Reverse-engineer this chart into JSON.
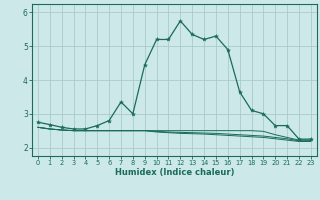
{
  "xlabel": "Humidex (Indice chaleur)",
  "xlim": [
    -0.5,
    23.5
  ],
  "ylim": [
    1.75,
    6.25
  ],
  "yticks": [
    2,
    3,
    4,
    5,
    6
  ],
  "xticks": [
    0,
    1,
    2,
    3,
    4,
    5,
    6,
    7,
    8,
    9,
    10,
    11,
    12,
    13,
    14,
    15,
    16,
    17,
    18,
    19,
    20,
    21,
    22,
    23
  ],
  "bg_color": "#cce8e8",
  "grid_color": "#aacaca",
  "line_color": "#1a6b5a",
  "main_curve_x": [
    0,
    1,
    2,
    3,
    4,
    5,
    6,
    7,
    8,
    9,
    10,
    11,
    12,
    13,
    14,
    15,
    16,
    17,
    18,
    19,
    20,
    21,
    22,
    23
  ],
  "main_curve_y": [
    2.75,
    2.68,
    2.6,
    2.55,
    2.55,
    2.65,
    2.8,
    3.35,
    3.0,
    4.45,
    5.2,
    5.2,
    5.75,
    5.35,
    5.2,
    5.3,
    4.9,
    3.65,
    3.1,
    3.0,
    2.65,
    2.65,
    2.25,
    2.25
  ],
  "flat_curve1_y": [
    2.6,
    2.55,
    2.52,
    2.5,
    2.5,
    2.5,
    2.5,
    2.5,
    2.5,
    2.5,
    2.5,
    2.5,
    2.5,
    2.5,
    2.5,
    2.5,
    2.5,
    2.5,
    2.5,
    2.48,
    2.38,
    2.3,
    2.22,
    2.22
  ],
  "flat_curve2_y": [
    2.6,
    2.55,
    2.52,
    2.5,
    2.5,
    2.5,
    2.5,
    2.5,
    2.5,
    2.5,
    2.48,
    2.46,
    2.45,
    2.44,
    2.43,
    2.42,
    2.4,
    2.38,
    2.36,
    2.34,
    2.3,
    2.26,
    2.2,
    2.2
  ],
  "flat_curve3_y": [
    2.6,
    2.55,
    2.52,
    2.5,
    2.5,
    2.5,
    2.5,
    2.5,
    2.5,
    2.5,
    2.46,
    2.44,
    2.42,
    2.41,
    2.4,
    2.38,
    2.36,
    2.34,
    2.32,
    2.3,
    2.26,
    2.22,
    2.18,
    2.18
  ]
}
